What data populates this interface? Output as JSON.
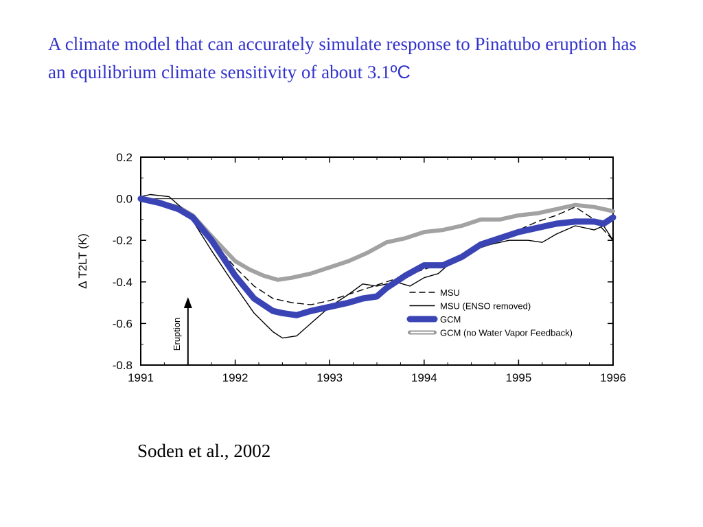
{
  "slide": {
    "title": "A climate model that can accurately simulate response to Pinatubo eruption has an equilibrium climate sensitivity of about 3.1",
    "title_unit": "ºC",
    "citation": "Soden et al., 2002"
  },
  "chart_data": {
    "type": "line",
    "title": "",
    "xlabel": "",
    "ylabel": "Δ T2LT (K)",
    "xlim": [
      1991,
      1996
    ],
    "ylim": [
      -0.8,
      0.2
    ],
    "x_ticks": [
      "1991",
      "1992",
      "1993",
      "1994",
      "1995",
      "1996"
    ],
    "y_ticks": [
      "0.2",
      "0.0",
      "-0.2",
      "-0.4",
      "-0.6",
      "-0.8"
    ],
    "zero_line": true,
    "legend_position": "lower-right",
    "annotation": {
      "text": "Eruption",
      "x": 1991.5
    },
    "colors": {
      "gcm": "#3a44b4",
      "gcm_novwf": "#a2a2a2",
      "msu": "#000000",
      "title": "#3333cc"
    },
    "series": [
      {
        "name": "MSU",
        "style": "dashed",
        "x": [
          1991.0,
          1991.3,
          1991.5,
          1991.75,
          1992.0,
          1992.2,
          1992.4,
          1992.6,
          1992.8,
          1993.0,
          1993.2,
          1993.4,
          1993.6,
          1993.8,
          1994.0,
          1994.2,
          1994.4,
          1994.6,
          1994.8,
          1995.0,
          1995.2,
          1995.4,
          1995.6,
          1995.8,
          1996.0
        ],
        "y": [
          0.0,
          -0.03,
          -0.07,
          -0.2,
          -0.33,
          -0.42,
          -0.48,
          -0.5,
          -0.51,
          -0.49,
          -0.46,
          -0.43,
          -0.4,
          -0.37,
          -0.34,
          -0.31,
          -0.27,
          -0.23,
          -0.19,
          -0.15,
          -0.11,
          -0.08,
          -0.04,
          -0.1,
          -0.2
        ]
      },
      {
        "name": "MSU (ENSO removed)",
        "style": "solid-thin",
        "x": [
          1991.0,
          1991.1,
          1991.3,
          1991.5,
          1991.75,
          1992.0,
          1992.2,
          1992.4,
          1992.5,
          1992.65,
          1992.8,
          1993.0,
          1993.2,
          1993.35,
          1993.5,
          1993.7,
          1993.85,
          1994.0,
          1994.15,
          1994.3,
          1994.5,
          1994.7,
          1994.9,
          1995.1,
          1995.25,
          1995.4,
          1995.6,
          1995.8,
          1995.9,
          1996.0
        ],
        "y": [
          0.01,
          0.02,
          0.01,
          -0.07,
          -0.25,
          -0.42,
          -0.55,
          -0.64,
          -0.67,
          -0.66,
          -0.6,
          -0.52,
          -0.46,
          -0.41,
          -0.42,
          -0.4,
          -0.42,
          -0.38,
          -0.36,
          -0.3,
          -0.25,
          -0.22,
          -0.2,
          -0.2,
          -0.21,
          -0.17,
          -0.13,
          -0.15,
          -0.13,
          -0.2
        ]
      },
      {
        "name": "GCM",
        "style": "thick",
        "x": [
          1991.0,
          1991.2,
          1991.4,
          1991.55,
          1991.75,
          1992.0,
          1992.2,
          1992.4,
          1992.5,
          1992.65,
          1992.8,
          1993.0,
          1993.2,
          1993.35,
          1993.5,
          1993.6,
          1993.8,
          1994.0,
          1994.2,
          1994.4,
          1994.6,
          1994.8,
          1995.0,
          1995.2,
          1995.4,
          1995.6,
          1995.8,
          1995.9,
          1996.0
        ],
        "y": [
          0.0,
          -0.02,
          -0.05,
          -0.09,
          -0.2,
          -0.37,
          -0.48,
          -0.54,
          -0.55,
          -0.56,
          -0.54,
          -0.52,
          -0.5,
          -0.48,
          -0.47,
          -0.43,
          -0.37,
          -0.32,
          -0.32,
          -0.28,
          -0.22,
          -0.19,
          -0.16,
          -0.14,
          -0.12,
          -0.11,
          -0.11,
          -0.12,
          -0.09
        ]
      },
      {
        "name": "GCM (no Water Vapor Feedback)",
        "style": "thick-gray",
        "x": [
          1991.0,
          1991.2,
          1991.4,
          1991.55,
          1991.75,
          1992.0,
          1992.15,
          1992.3,
          1992.45,
          1992.6,
          1992.8,
          1993.0,
          1993.2,
          1993.4,
          1993.6,
          1993.8,
          1994.0,
          1994.2,
          1994.4,
          1994.6,
          1994.8,
          1995.0,
          1995.2,
          1995.4,
          1995.6,
          1995.8,
          1996.0
        ],
        "y": [
          0.0,
          -0.02,
          -0.04,
          -0.08,
          -0.18,
          -0.3,
          -0.34,
          -0.37,
          -0.39,
          -0.38,
          -0.36,
          -0.33,
          -0.3,
          -0.26,
          -0.21,
          -0.19,
          -0.16,
          -0.15,
          -0.13,
          -0.1,
          -0.1,
          -0.08,
          -0.07,
          -0.05,
          -0.03,
          -0.04,
          -0.06
        ]
      }
    ]
  }
}
